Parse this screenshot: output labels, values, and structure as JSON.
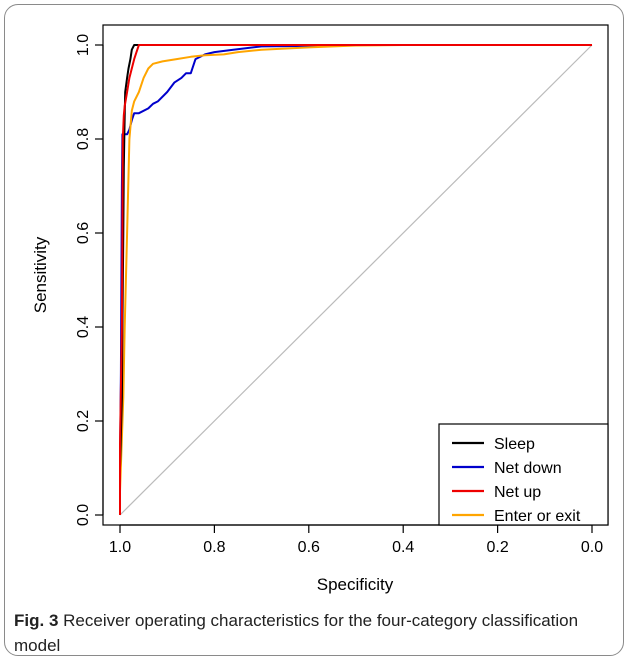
{
  "caption": {
    "label": "Fig. 3",
    "text": "Receiver operating characteristics for the four-category classification model"
  },
  "chart_data": {
    "type": "line",
    "xlabel": "Specificity",
    "ylabel": "Sensitivity",
    "xlim": [
      1.0,
      0.0
    ],
    "ylim": [
      0.0,
      1.0
    ],
    "x_ticks": [
      "1.0",
      "0.8",
      "0.6",
      "0.4",
      "0.2",
      "0.0"
    ],
    "y_ticks": [
      "0.0",
      "0.2",
      "0.4",
      "0.6",
      "0.8",
      "1.0"
    ],
    "legend_position": "bottom-right",
    "grid": false,
    "reference_line": {
      "x": [
        1.0,
        0.0
      ],
      "y": [
        0.0,
        1.0
      ],
      "color": "#bbbbbb"
    },
    "series": [
      {
        "name": "Sleep",
        "color": "#000000",
        "x": [
          1.0,
          1.0,
          0.996,
          0.995,
          0.993,
          0.992,
          0.99,
          0.989,
          0.985,
          0.982,
          0.978,
          0.975,
          0.97,
          0.95,
          0.9,
          0.8,
          0.6,
          0.4,
          0.2,
          0.0
        ],
        "y": [
          0.0,
          0.1,
          0.25,
          0.4,
          0.6,
          0.74,
          0.85,
          0.9,
          0.93,
          0.95,
          0.97,
          0.99,
          1.0,
          1.0,
          1.0,
          1.0,
          1.0,
          1.0,
          1.0,
          1.0
        ]
      },
      {
        "name": "Net down",
        "color": "#0000cc",
        "x": [
          1.0,
          1.0,
          0.998,
          0.997,
          0.996,
          0.995,
          0.993,
          0.99,
          0.985,
          0.98,
          0.975,
          0.97,
          0.96,
          0.94,
          0.93,
          0.92,
          0.9,
          0.885,
          0.87,
          0.86,
          0.85,
          0.84,
          0.82,
          0.8,
          0.76,
          0.7,
          0.6,
          0.55,
          0.5,
          0.4,
          0.2,
          0.0
        ],
        "y": [
          0.0,
          0.1,
          0.3,
          0.5,
          0.7,
          0.81,
          0.81,
          0.81,
          0.81,
          0.82,
          0.84,
          0.855,
          0.855,
          0.865,
          0.875,
          0.88,
          0.9,
          0.92,
          0.93,
          0.94,
          0.94,
          0.97,
          0.98,
          0.985,
          0.99,
          0.997,
          0.998,
          0.999,
          1.0,
          1.0,
          1.0,
          1.0
        ]
      },
      {
        "name": "Net up",
        "color": "#ee0000",
        "x": [
          1.0,
          1.0,
          0.996,
          0.995,
          0.994,
          0.992,
          0.99,
          0.985,
          0.98,
          0.975,
          0.97,
          0.965,
          0.96,
          0.95,
          0.9,
          0.8,
          0.6,
          0.4,
          0.2,
          0.0
        ],
        "y": [
          0.0,
          0.15,
          0.4,
          0.6,
          0.8,
          0.85,
          0.87,
          0.9,
          0.93,
          0.95,
          0.97,
          0.985,
          1.0,
          1.0,
          1.0,
          1.0,
          1.0,
          1.0,
          1.0,
          1.0
        ]
      },
      {
        "name": "Enter or exit",
        "color": "#ffa500",
        "x": [
          1.0,
          1.0,
          0.993,
          0.99,
          0.985,
          0.98,
          0.975,
          0.97,
          0.96,
          0.95,
          0.94,
          0.93,
          0.91,
          0.88,
          0.85,
          0.82,
          0.78,
          0.75,
          0.7,
          0.6,
          0.5,
          0.4,
          0.2,
          0.0
        ],
        "y": [
          0.0,
          0.05,
          0.25,
          0.4,
          0.6,
          0.8,
          0.86,
          0.88,
          0.9,
          0.93,
          0.95,
          0.96,
          0.965,
          0.97,
          0.975,
          0.978,
          0.98,
          0.985,
          0.99,
          0.995,
          0.999,
          1.0,
          1.0,
          1.0
        ]
      }
    ]
  }
}
